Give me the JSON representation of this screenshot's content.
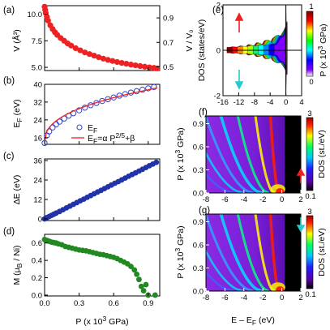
{
  "panel_labels": {
    "a": "(a)",
    "b": "(b)",
    "c": "(c)",
    "d": "(d)",
    "e": "(e)",
    "f": "(f)",
    "g": "(g)"
  },
  "colors": {
    "red_marker": "#ee2222",
    "blue_marker": "#2233aa",
    "green_marker": "#228822",
    "fit_line": "#ee2222",
    "open_circle": "#3344cc",
    "up_arrow": "#ee2222",
    "down_arrow": "#22cccc",
    "colormap": [
      "#ffffff",
      "#7f00ff",
      "#0000ff",
      "#00ffff",
      "#00ff00",
      "#ffff00",
      "#ff0000",
      "#7f0000"
    ]
  },
  "left_x_axis": {
    "label": "P (x 10³ GPa)",
    "ticks": [
      "0.0",
      "0.3",
      "0.6",
      "0.9"
    ]
  },
  "chart_data": [
    {
      "id": "a",
      "type": "scatter",
      "xlabel": "P (x 10³ GPa)",
      "ylabel": "V (Å³)",
      "y2label": "V / V₀",
      "xlim": [
        0,
        1.0
      ],
      "ylim": [
        4.7,
        10.8
      ],
      "y2lim": [
        0.47,
        1.0
      ],
      "yticks": [
        "5.0",
        "7.5",
        "10.0"
      ],
      "y2ticks": [
        "0.5",
        "0.7",
        "0.9"
      ],
      "x": [
        0.0,
        0.005,
        0.01,
        0.02,
        0.03,
        0.05,
        0.07,
        0.09,
        0.11,
        0.14,
        0.17,
        0.2,
        0.23,
        0.27,
        0.31,
        0.35,
        0.39,
        0.43,
        0.47,
        0.51,
        0.55,
        0.59,
        0.63,
        0.67,
        0.71,
        0.75,
        0.79,
        0.83,
        0.87,
        0.91,
        0.95,
        0.98
      ],
      "y": [
        10.7,
        10.4,
        10.1,
        9.75,
        9.4,
        8.95,
        8.6,
        8.3,
        8.05,
        7.75,
        7.5,
        7.25,
        7.05,
        6.8,
        6.6,
        6.4,
        6.25,
        6.1,
        5.95,
        5.82,
        5.7,
        5.6,
        5.5,
        5.42,
        5.34,
        5.26,
        5.19,
        5.12,
        5.06,
        5.0,
        4.95,
        4.9
      ]
    },
    {
      "id": "b",
      "type": "scatter",
      "xlabel": "P (x 10³ GPa)",
      "ylabel": "E_F (eV)",
      "xlim": [
        0,
        1.0
      ],
      "ylim": [
        13,
        40
      ],
      "yticks": [
        "16",
        "24",
        "32",
        "40"
      ],
      "legend": [
        "E_F",
        "E_F=α P^2/5+β"
      ],
      "legend_position": "bottom-right",
      "series": [
        {
          "name": "E_F",
          "marker": "open-circle",
          "x": [
            0.0,
            0.02,
            0.04,
            0.07,
            0.1,
            0.13,
            0.17,
            0.21,
            0.25,
            0.3,
            0.35,
            0.4,
            0.45,
            0.5,
            0.55,
            0.6,
            0.65,
            0.7,
            0.75,
            0.8,
            0.85,
            0.9,
            0.95
          ],
          "y": [
            13.6,
            17.0,
            18.8,
            20.6,
            22.0,
            23.2,
            24.6,
            25.9,
            27.0,
            28.3,
            29.5,
            30.6,
            31.6,
            32.5,
            33.3,
            34.1,
            34.9,
            35.6,
            36.3,
            36.9,
            37.6,
            38.2,
            38.8
          ]
        },
        {
          "name": "E_F=α P^2/5+β",
          "marker": "line",
          "alpha": 25.0,
          "beta": 13.6
        }
      ]
    },
    {
      "id": "c",
      "type": "scatter",
      "xlabel": "P (x 10³ GPa)",
      "ylabel": "ΔE (eV)",
      "xlim": [
        0,
        1.0
      ],
      "ylim": [
        -1,
        37
      ],
      "yticks": [
        "0",
        "12",
        "24",
        "36"
      ],
      "x": [
        0.0,
        0.02,
        0.04,
        0.06,
        0.08,
        0.1,
        0.13,
        0.16,
        0.19,
        0.22,
        0.25,
        0.28,
        0.31,
        0.34,
        0.37,
        0.4,
        0.43,
        0.46,
        0.49,
        0.52,
        0.55,
        0.58,
        0.61,
        0.64,
        0.67,
        0.7,
        0.73,
        0.76,
        0.79,
        0.82,
        0.85,
        0.88,
        0.91,
        0.94,
        0.97
      ],
      "y": [
        0.0,
        0.8,
        1.5,
        2.2,
        2.9,
        3.6,
        4.6,
        5.7,
        6.8,
        7.9,
        9.0,
        10.1,
        11.2,
        12.2,
        13.3,
        14.4,
        15.5,
        16.6,
        17.6,
        18.7,
        19.8,
        20.9,
        22.0,
        23.0,
        24.1,
        25.2,
        26.3,
        27.4,
        28.4,
        29.5,
        30.6,
        31.7,
        32.8,
        33.8,
        34.9
      ]
    },
    {
      "id": "d",
      "type": "scatter",
      "xlabel": "P (x 10³ GPa)",
      "ylabel": "M (μ_B / Ni)",
      "xlim": [
        0,
        1.0
      ],
      "ylim": [
        -0.01,
        0.7
      ],
      "yticks": [
        "0.0",
        "0.2",
        "0.4",
        "0.6"
      ],
      "x": [
        0.0,
        0.02,
        0.04,
        0.06,
        0.08,
        0.1,
        0.12,
        0.15,
        0.18,
        0.21,
        0.24,
        0.27,
        0.3,
        0.33,
        0.36,
        0.39,
        0.42,
        0.45,
        0.48,
        0.51,
        0.54,
        0.57,
        0.6,
        0.63,
        0.66,
        0.69,
        0.72,
        0.75,
        0.78,
        0.8,
        0.82,
        0.84,
        0.86,
        0.88,
        0.9,
        0.96
      ],
      "y": [
        0.64,
        0.63,
        0.62,
        0.61,
        0.605,
        0.6,
        0.59,
        0.58,
        0.56,
        0.55,
        0.54,
        0.53,
        0.52,
        0.515,
        0.51,
        0.5,
        0.49,
        0.48,
        0.47,
        0.465,
        0.455,
        0.445,
        0.435,
        0.42,
        0.4,
        0.38,
        0.36,
        0.33,
        0.29,
        0.24,
        0.18,
        0.1,
        0.05,
        0.12,
        0.0,
        0.0
      ]
    },
    {
      "id": "e",
      "type": "area",
      "xlabel": "",
      "ylabel": "DOS (states/eV)",
      "xlim": [
        -16,
        4
      ],
      "ylim": [
        -2,
        2
      ],
      "xticks": [
        "-16",
        "-12",
        "-8",
        "-4",
        "0",
        "4"
      ],
      "yticks": [
        "-2",
        "0",
        "2"
      ],
      "colorbar": {
        "label": "P (x 10³ GPa)",
        "ticks": [
          "0",
          "1"
        ]
      },
      "description_free": true
    },
    {
      "id": "f",
      "type": "heatmap",
      "xlabel": "",
      "ylabel": "P (x 10³ GPa)",
      "xlim": [
        -8,
        2
      ],
      "ylim": [
        0,
        1.0
      ],
      "xticks": [
        "-8",
        "-6",
        "-4",
        "-2",
        "0",
        "2"
      ],
      "yticks": [
        "0.0",
        "0.3",
        "0.6",
        "0.9"
      ],
      "colorbar": {
        "label": "DOS (st./eV)",
        "ticks": [
          "3",
          "0.1"
        ]
      },
      "spin": "up"
    },
    {
      "id": "g",
      "type": "heatmap",
      "xlabel": "E – E_F (eV)",
      "ylabel": "P (x 10³ GPa)",
      "xlim": [
        -8,
        2
      ],
      "ylim": [
        0,
        1.0
      ],
      "xticks": [
        "-8",
        "-6",
        "-4",
        "-2",
        "0",
        "2"
      ],
      "yticks": [
        "0.0",
        "0.3",
        "0.6",
        "0.9"
      ],
      "colorbar": {
        "label": "DOS (st./eV)",
        "ticks": [
          "3",
          "0.1"
        ]
      },
      "spin": "down"
    }
  ],
  "text": {
    "a_ylabel": "V (Å³)",
    "a_y2label": "V / V₀",
    "b_ylabel": "E",
    "b_ylabel_sub": "F",
    "b_ylabel_unit": " (eV)",
    "b_legend_1": "E",
    "b_legend_1_sub": "F",
    "b_legend_2": "E",
    "b_legend_2_sub": "F",
    "b_legend_2_rest": "=α P",
    "b_legend_2_sup": "2/5",
    "b_legend_2_end": "+β",
    "c_ylabel": "ΔE (eV)",
    "d_ylabel": "M (μ",
    "d_ylabel_sub": "B",
    "d_ylabel_end": " / Ni)",
    "left_xlabel": "P (x 10",
    "left_xlabel_sup": "3",
    "left_xlabel_end": " GPa)",
    "e_ylabel": "DOS (states/eV)",
    "e_cbar_label": "P (x 10",
    "e_cbar_sup": "3",
    "e_cbar_end": " GPa)",
    "fg_ylabel": "P (x 10",
    "fg_ylabel_sup": "3",
    "fg_ylabel_end": " GPa)",
    "fg_cbar_label": "DOS (st./eV)",
    "g_xlabel": "E – E",
    "g_xlabel_sub": "F",
    "g_xlabel_end": " (eV)"
  }
}
